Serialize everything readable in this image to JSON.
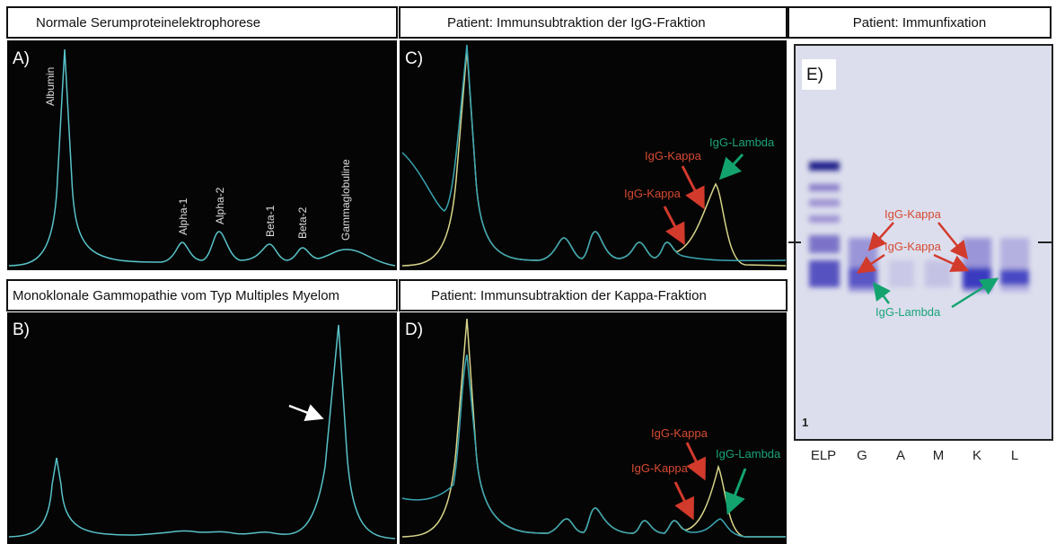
{
  "panel_a": {
    "header": "Normale Serumproteinelektrophorese",
    "letter": "A)",
    "peaks": [
      "Albumin",
      "Alpha-1",
      "Alpha-2",
      "Beta-1",
      "Beta-2",
      "Gammaglobuline"
    ]
  },
  "panel_b": {
    "header": "Monoklonale Gammopathie vom Typ Multiples Myelom",
    "letter": "B)"
  },
  "panel_c": {
    "header": "Patient: Immunsubtraktion der IgG-Fraktion",
    "letter": "C)",
    "annotations": [
      "IgG-Lambda",
      "IgG-Kappa",
      "IgG-Kappa"
    ]
  },
  "panel_d": {
    "header": "Patient: Immunsubtraktion der Kappa-Fraktion",
    "letter": "D)",
    "annotations": [
      "IgG-Kappa",
      "IgG-Kappa",
      "IgG-Lambda"
    ]
  },
  "panel_e": {
    "header": "Patient: Immunfixation",
    "letter": "E)",
    "annotations": [
      "IgG-Kappa",
      "IgG-Kappa",
      "IgG-Lambda"
    ],
    "gel_number": "1",
    "lanes": [
      "ELP",
      "G",
      "A",
      "M",
      "K",
      "L"
    ]
  }
}
